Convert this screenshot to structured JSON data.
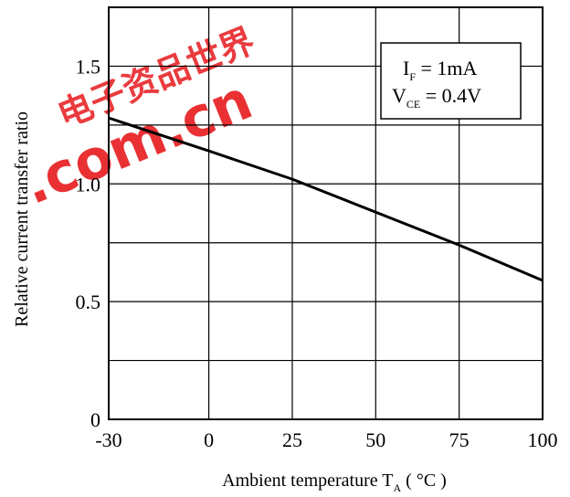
{
  "chart_data": {
    "type": "line",
    "xlabel_main": "Ambient temperature T",
    "xlabel_sub": "A",
    "xlabel_unit": " ( °C )",
    "ylabel": "Relative current transfer ratio",
    "xlim": [
      -30,
      100
    ],
    "ylim": [
      0,
      1.75
    ],
    "x_ticks": [
      -30,
      0,
      25,
      50,
      75,
      100
    ],
    "y_ticks": [
      0,
      0.5,
      1.0,
      1.5
    ],
    "x_tick_labels": [
      "-30",
      "0",
      "25",
      "50",
      "75",
      "100"
    ],
    "y_tick_labels": [
      "0",
      "0.5",
      "1.0",
      "1.5"
    ],
    "grid": true,
    "legend_position": "top-right",
    "conditions": {
      "line1_main": "I",
      "line1_sub": "F",
      "line1_rest": " = 1mA",
      "line2_main": "V",
      "line2_sub": "CE",
      "line2_rest": " = 0.4V"
    },
    "series": [
      {
        "x": [
          -30,
          0,
          25,
          50,
          75,
          100
        ],
        "y": [
          1.28,
          1.14,
          1.02,
          0.88,
          0.74,
          0.59
        ]
      }
    ],
    "colors": {
      "line": "#000000",
      "grid": "#000000"
    }
  },
  "watermark": {
    "text": ".com.cn",
    "chinese": "电子资品世界",
    "color": "#e8262a"
  }
}
